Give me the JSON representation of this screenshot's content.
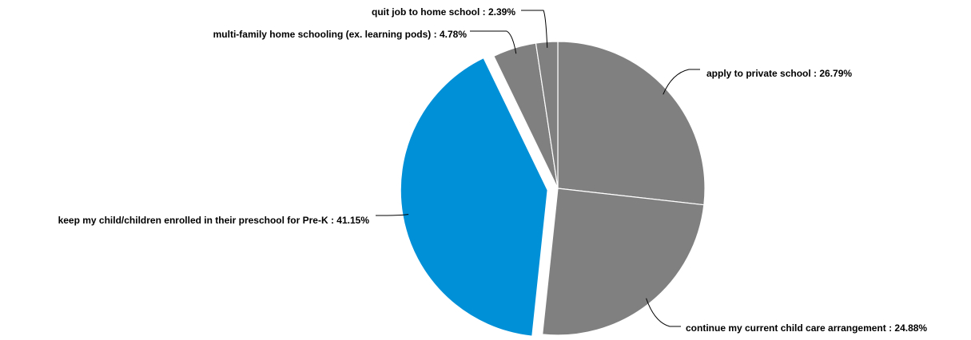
{
  "chart_data": {
    "type": "pie",
    "title": "",
    "label_separator": " : ",
    "slices": [
      {
        "label": "apply to private school",
        "value": 26.79,
        "display": "26.79%",
        "color": "#808080",
        "exploded": false
      },
      {
        "label": "continue my current child care arrangement",
        "value": 24.88,
        "display": "24.88%",
        "color": "#808080",
        "exploded": false
      },
      {
        "label": "keep my child/children enrolled in their preschool for Pre-K",
        "value": 41.15,
        "display": "41.15%",
        "color": "#0090d8",
        "exploded": true
      },
      {
        "label": "multi-family home schooling (ex. learning pods)",
        "value": 4.78,
        "display": "4.78%",
        "color": "#808080",
        "exploded": false
      },
      {
        "label": "quit job to home school",
        "value": 2.39,
        "display": "2.39%",
        "color": "#808080",
        "exploded": false
      }
    ],
    "start_angle": "12 o'clock",
    "direction": "clockwise",
    "legend": "none",
    "slice_border_color": "#ffffff",
    "leader_line_color": "#000000"
  }
}
